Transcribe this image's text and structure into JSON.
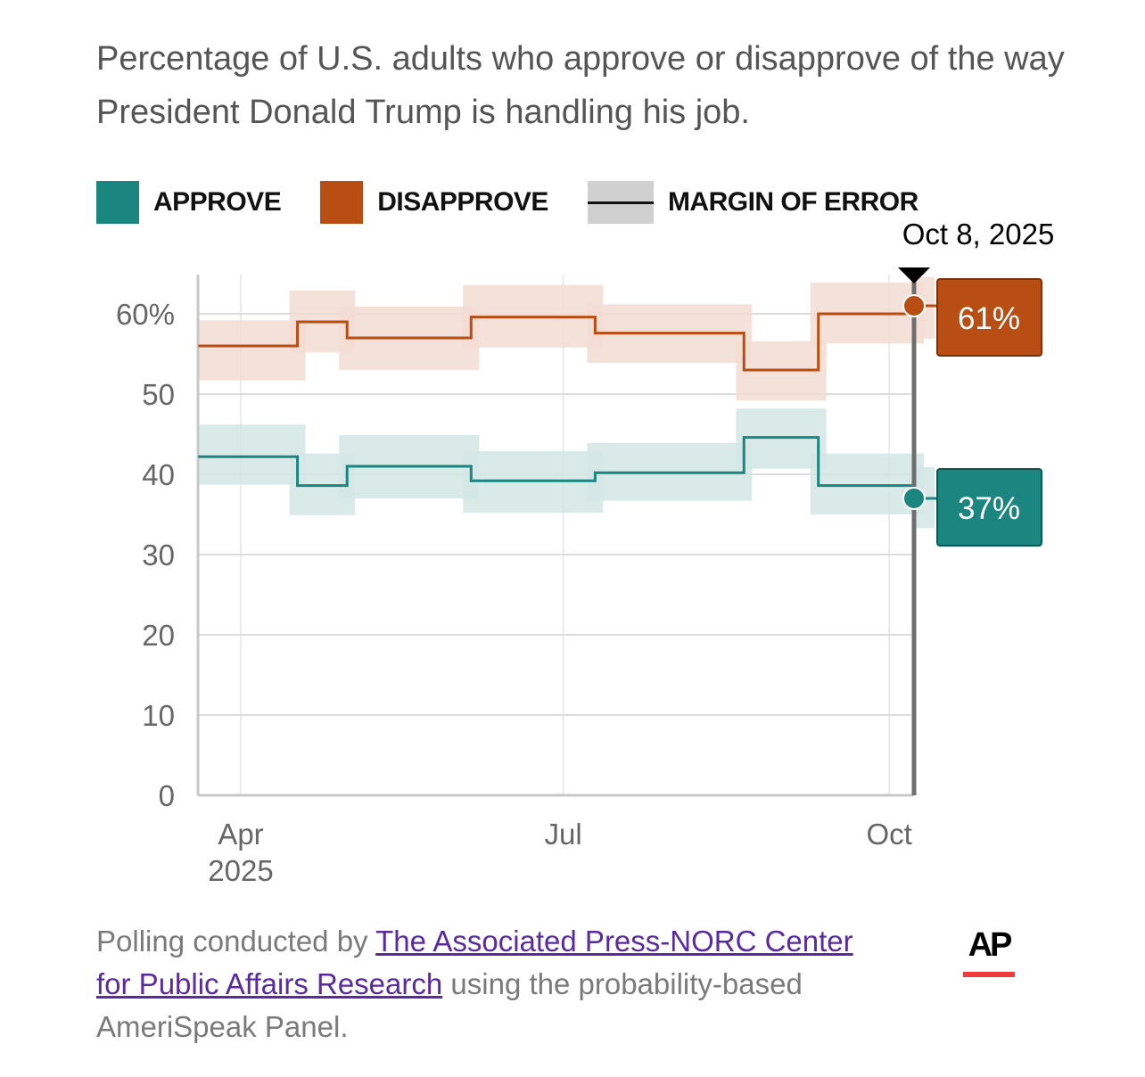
{
  "title": "Percentage of U.S. adults who approve or disapprove of the way President Donald Trump is handling his job.",
  "legend": {
    "approve": "APPROVE",
    "disapprove": "DISAPPROVE",
    "moe": "MARGIN OF ERROR"
  },
  "colors": {
    "approve": "#1b8680",
    "disapprove": "#b84e13",
    "approve_band": "#d3e6e5",
    "disapprove_band": "#f2dcd2"
  },
  "chart_data": {
    "type": "line",
    "title": "Percentage of U.S. adults who approve or disapprove of the way President Donald Trump is handling his job.",
    "ylim": [
      0,
      65
    ],
    "yticks": [
      0,
      10,
      20,
      30,
      40,
      50,
      60
    ],
    "ytick_labels": [
      "0",
      "10",
      "20",
      "30",
      "40",
      "50",
      "60%"
    ],
    "xticks": [
      {
        "date": "2025-04-01",
        "label": "Apr",
        "sub": "2025"
      },
      {
        "date": "2025-07-01",
        "label": "Jul",
        "sub": ""
      },
      {
        "date": "2025-10-01",
        "label": "Oct",
        "sub": ""
      }
    ],
    "xlim": [
      "2025-03-20",
      "2025-10-08"
    ],
    "grid": true,
    "series": [
      {
        "name": "Disapprove",
        "steps": [
          {
            "start": "2025-03-20",
            "end": "2025-04-17",
            "value": 56,
            "lo": 51.7,
            "hi": 59.2
          },
          {
            "start": "2025-04-17",
            "end": "2025-05-01",
            "value": 59,
            "lo": 55.2,
            "hi": 62.9
          },
          {
            "start": "2025-05-01",
            "end": "2025-06-05",
            "value": 57,
            "lo": 53,
            "hi": 60.9
          },
          {
            "start": "2025-06-05",
            "end": "2025-07-10",
            "value": 59.6,
            "lo": 55.8,
            "hi": 63.6
          },
          {
            "start": "2025-07-10",
            "end": "2025-08-21",
            "value": 57.6,
            "lo": 53.9,
            "hi": 61.2
          },
          {
            "start": "2025-08-21",
            "end": "2025-09-11",
            "value": 53,
            "lo": 49.2,
            "hi": 56.6
          },
          {
            "start": "2025-09-11",
            "end": "2025-10-08",
            "value": 60,
            "lo": 56.3,
            "hi": 63.9
          }
        ],
        "latest": {
          "value": 61,
          "lo": 56.9,
          "hi": 64.6,
          "label": "61%"
        }
      },
      {
        "name": "Approve",
        "steps": [
          {
            "start": "2025-03-20",
            "end": "2025-04-17",
            "value": 42.2,
            "lo": 38.7,
            "hi": 46.2
          },
          {
            "start": "2025-04-17",
            "end": "2025-05-01",
            "value": 38.6,
            "lo": 34.9,
            "hi": 42.6
          },
          {
            "start": "2025-05-01",
            "end": "2025-06-05",
            "value": 41,
            "lo": 37,
            "hi": 44.9
          },
          {
            "start": "2025-06-05",
            "end": "2025-07-10",
            "value": 39.2,
            "lo": 35.2,
            "hi": 42.9
          },
          {
            "start": "2025-07-10",
            "end": "2025-08-21",
            "value": 40.2,
            "lo": 36.7,
            "hi": 43.9
          },
          {
            "start": "2025-08-21",
            "end": "2025-09-11",
            "value": 44.6,
            "lo": 40.7,
            "hi": 48.2
          },
          {
            "start": "2025-09-11",
            "end": "2025-10-08",
            "value": 38.6,
            "lo": 35,
            "hi": 42.6
          }
        ],
        "latest": {
          "value": 37,
          "lo": 33.3,
          "hi": 40.9,
          "label": "37%"
        }
      }
    ],
    "annotation": {
      "date": "2025-10-08",
      "label": "Oct 8, 2025"
    }
  },
  "footer": {
    "prefix": "Polling conducted by ",
    "link": "The Associated Press-NORC Center for Public Affairs Research",
    "suffix": " using the probability-based AmeriSpeak Panel."
  },
  "logo": {
    "text": "AP"
  }
}
